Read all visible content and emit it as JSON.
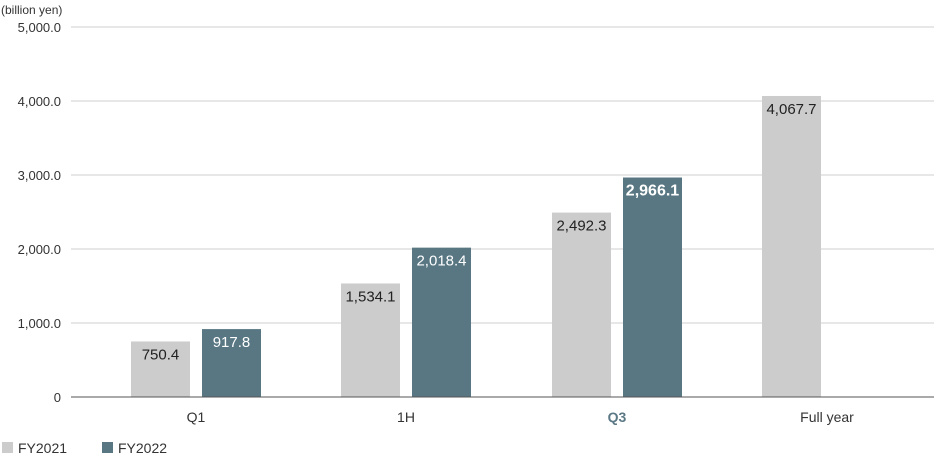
{
  "chart_data": {
    "type": "bar",
    "unit_label": "(billion yen)",
    "categories": [
      "Q1",
      "1H",
      "Q3",
      "Full year"
    ],
    "highlight_category": "Q3",
    "ylim": [
      0,
      5000
    ],
    "yticks": [
      {
        "value": 0,
        "label": "0"
      },
      {
        "value": 1000,
        "label": "1,000.0"
      },
      {
        "value": 2000,
        "label": "2,000.0"
      },
      {
        "value": 3000,
        "label": "3,000.0"
      },
      {
        "value": 4000,
        "label": "4,000.0"
      },
      {
        "value": 5000,
        "label": "5,000.0"
      }
    ],
    "grid": true,
    "legend_position": "bottom-left",
    "series": [
      {
        "name": "FY2021",
        "color": "#cccccc",
        "values": [
          750.4,
          1534.1,
          2492.3,
          4067.7
        ],
        "labels": [
          "750.4",
          "1,534.1",
          "2,492.3",
          "4,067.7"
        ]
      },
      {
        "name": "FY2022",
        "color": "#587783",
        "values": [
          917.8,
          2018.4,
          2966.1,
          null
        ],
        "labels": [
          "917.8",
          "2,018.4",
          "2,966.1",
          null
        ]
      }
    ]
  }
}
